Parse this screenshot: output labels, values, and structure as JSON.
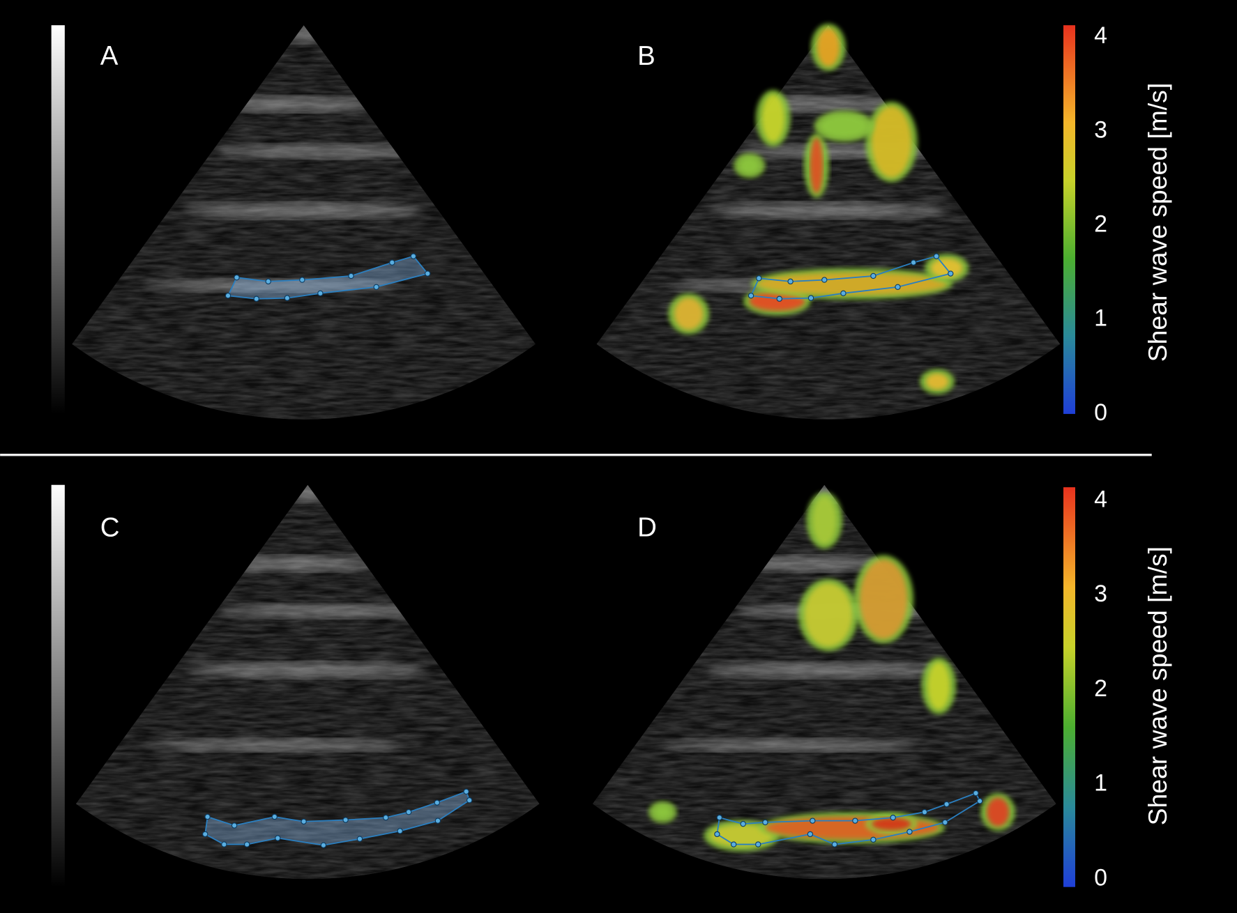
{
  "panels": [
    {
      "label": "A"
    },
    {
      "label": "B"
    },
    {
      "label": "C"
    },
    {
      "label": "D"
    }
  ],
  "colorbars": [
    {
      "title": "Shear wave speed [m/s]",
      "ticks": [
        0,
        1,
        2,
        3,
        4
      ]
    },
    {
      "title": "Shear wave speed [m/s]",
      "ticks": [
        0,
        1,
        2,
        3,
        4
      ]
    }
  ]
}
